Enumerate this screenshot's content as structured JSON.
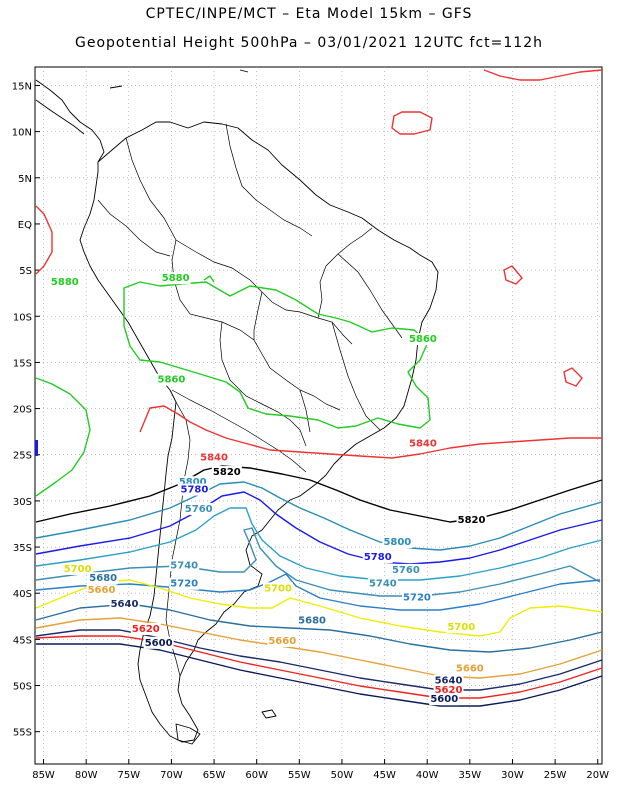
{
  "header": {
    "line1": "CPTEC/INPE/MCT –  Eta Model 15km – GFS",
    "line2": "Geopotential Height 500hPa – 03/01/2021 12UTC fct=112h"
  },
  "map": {
    "lon_range": [
      -86,
      -19.5
    ],
    "lat_range": [
      -58.5,
      17
    ],
    "lat_ticks": [
      "15N",
      "10N",
      "5N",
      "EQ",
      "5S",
      "10S",
      "15S",
      "20S",
      "25S",
      "30S",
      "35S",
      "40S",
      "45S",
      "50S",
      "55S"
    ],
    "lon_ticks": [
      "85W",
      "80W",
      "75W",
      "70W",
      "65W",
      "60W",
      "55W",
      "50W",
      "45W",
      "40W",
      "35W",
      "30W",
      "25W",
      "20W"
    ],
    "grid": true
  },
  "contours": [
    {
      "value": "5880",
      "color": "#22cc22"
    },
    {
      "value": "5860",
      "color": "#22cc22"
    },
    {
      "value": "5840",
      "color": "#ee3333"
    },
    {
      "value": "5820",
      "color": "#000000"
    },
    {
      "value": "5800",
      "color": "#2a8cb8"
    },
    {
      "value": "5780",
      "color": "#1a1aee"
    },
    {
      "value": "5760",
      "color": "#2aa0c8"
    },
    {
      "value": "5740",
      "color": "#3b8fb5"
    },
    {
      "value": "5720",
      "color": "#2b7fc8"
    },
    {
      "value": "5700",
      "color": "#eeee00"
    },
    {
      "value": "5680",
      "color": "#2a6fa0"
    },
    {
      "value": "5660",
      "color": "#e6a035"
    },
    {
      "value": "5640",
      "color": "#1a2a6a"
    },
    {
      "value": "5620",
      "color": "#ee2222"
    },
    {
      "value": "5600",
      "color": "#0a1a5a"
    }
  ],
  "labels": [
    {
      "text": "5880",
      "lon": -69.5,
      "lat": -6.2,
      "color": "#22cc22"
    },
    {
      "text": "5880",
      "lon": -82.5,
      "lat": -6.6,
      "color": "#22cc22"
    },
    {
      "text": "5860",
      "lon": -40.5,
      "lat": -12.8,
      "color": "#22cc22"
    },
    {
      "text": "5860",
      "lon": -70.0,
      "lat": -17.2,
      "color": "#22cc22"
    },
    {
      "text": "5840",
      "lon": -40.5,
      "lat": -24.1,
      "color": "#ee3333"
    },
    {
      "text": "5840",
      "lon": -65.0,
      "lat": -25.6,
      "color": "#ee3333"
    },
    {
      "text": "5820",
      "lon": -63.5,
      "lat": -27.2,
      "color": "#000000"
    },
    {
      "text": "5820",
      "lon": -34.8,
      "lat": -32.4,
      "color": "#000000"
    },
    {
      "text": "5800",
      "lon": -67.5,
      "lat": -28.3,
      "color": "#2a8cb8"
    },
    {
      "text": "5800",
      "lon": -43.5,
      "lat": -34.8,
      "color": "#2a8cb8"
    },
    {
      "text": "5780",
      "lon": -67.3,
      "lat": -29.1,
      "color": "#1a1aee"
    },
    {
      "text": "5780",
      "lon": -45.8,
      "lat": -36.4,
      "color": "#1a1aee"
    },
    {
      "text": "5760",
      "lon": -66.8,
      "lat": -31.2,
      "color": "#3b8fb5"
    },
    {
      "text": "5760",
      "lon": -42.5,
      "lat": -37.8,
      "color": "#3b8fb5"
    },
    {
      "text": "5740",
      "lon": -68.5,
      "lat": -37.3,
      "color": "#3b8fb5"
    },
    {
      "text": "5740",
      "lon": -45.2,
      "lat": -39.3,
      "color": "#3b8fb5"
    },
    {
      "text": "5720",
      "lon": -68.5,
      "lat": -39.3,
      "color": "#2b7fc8"
    },
    {
      "text": "5720",
      "lon": -41.2,
      "lat": -40.8,
      "color": "#2b7fc8"
    },
    {
      "text": "5700",
      "lon": -81.0,
      "lat": -37.7,
      "color": "#dddd00"
    },
    {
      "text": "5700",
      "lon": -57.5,
      "lat": -39.8,
      "color": "#dddd00"
    },
    {
      "text": "5700",
      "lon": -36.0,
      "lat": -44.0,
      "color": "#dddd00"
    },
    {
      "text": "5680",
      "lon": -78.0,
      "lat": -38.7,
      "color": "#2a6fa0"
    },
    {
      "text": "5680",
      "lon": -53.5,
      "lat": -43.3,
      "color": "#2a6fa0"
    },
    {
      "text": "5660",
      "lon": -78.2,
      "lat": -40.0,
      "color": "#e6a035"
    },
    {
      "text": "5660",
      "lon": -57.0,
      "lat": -45.5,
      "color": "#e6a035"
    },
    {
      "text": "5660",
      "lon": -35.0,
      "lat": -48.5,
      "color": "#e6a035"
    },
    {
      "text": "5640",
      "lon": -75.5,
      "lat": -41.5,
      "color": "#1a2a6a"
    },
    {
      "text": "5640",
      "lon": -37.5,
      "lat": -49.8,
      "color": "#1a2a6a"
    },
    {
      "text": "5620",
      "lon": -73.0,
      "lat": -44.2,
      "color": "#ee2222"
    },
    {
      "text": "5620",
      "lon": -37.5,
      "lat": -50.8,
      "color": "#ee2222"
    },
    {
      "text": "5600",
      "lon": -71.5,
      "lat": -45.7,
      "color": "#0a1a5a"
    },
    {
      "text": "5600",
      "lon": -38.0,
      "lat": -51.8,
      "color": "#0a1a5a"
    }
  ]
}
